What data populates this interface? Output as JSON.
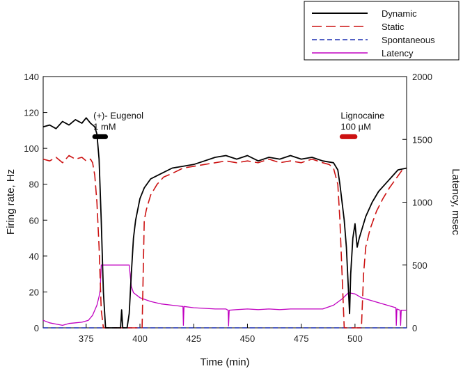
{
  "chart_data": {
    "type": "line",
    "title": "",
    "xlabel": "Time (min)",
    "ylabel": "Firing rate, Hz",
    "y2label": "Latency, msec",
    "xlim": [
      355,
      524
    ],
    "ylim": [
      0,
      140
    ],
    "y2lim": [
      0,
      2000
    ],
    "x_ticks": [
      375,
      400,
      425,
      450,
      475,
      500
    ],
    "y_ticks": [
      0,
      20,
      40,
      60,
      80,
      100,
      120,
      140
    ],
    "y2_ticks": [
      0,
      500,
      1000,
      1500,
      2000
    ],
    "grid": false,
    "legend_position": "top-right, outside plot",
    "legend": [
      "Dynamic",
      "Static",
      "Spontaneous",
      "Latency"
    ],
    "series": [
      {
        "name": "Dynamic",
        "axis": "left",
        "color": "#000000",
        "style": "solid",
        "points": [
          [
            355,
            112
          ],
          [
            358,
            113
          ],
          [
            361,
            111
          ],
          [
            364,
            115
          ],
          [
            367,
            113
          ],
          [
            370,
            116
          ],
          [
            373,
            114
          ],
          [
            375,
            117
          ],
          [
            377,
            114
          ],
          [
            379,
            112
          ],
          [
            380,
            108
          ],
          [
            381,
            94
          ],
          [
            382,
            60
          ],
          [
            383,
            20
          ],
          [
            384,
            0
          ],
          [
            391,
            0
          ],
          [
            391.5,
            10
          ],
          [
            392,
            0
          ],
          [
            394,
            0
          ],
          [
            395,
            8
          ],
          [
            396,
            30
          ],
          [
            397,
            50
          ],
          [
            398,
            60
          ],
          [
            399,
            66
          ],
          [
            400,
            72
          ],
          [
            402,
            78
          ],
          [
            405,
            83
          ],
          [
            410,
            86
          ],
          [
            415,
            89
          ],
          [
            420,
            90
          ],
          [
            425,
            91
          ],
          [
            430,
            93
          ],
          [
            435,
            95
          ],
          [
            440,
            96
          ],
          [
            445,
            94
          ],
          [
            450,
            96
          ],
          [
            455,
            93
          ],
          [
            460,
            95
          ],
          [
            465,
            94
          ],
          [
            470,
            96
          ],
          [
            475,
            94
          ],
          [
            480,
            95
          ],
          [
            485,
            93
          ],
          [
            490,
            92
          ],
          [
            492,
            88
          ],
          [
            493,
            80
          ],
          [
            494,
            70
          ],
          [
            495,
            60
          ],
          [
            496,
            45
          ],
          [
            497,
            20
          ],
          [
            497.5,
            8
          ],
          [
            498,
            30
          ],
          [
            499,
            50
          ],
          [
            500,
            58
          ],
          [
            501,
            45
          ],
          [
            502,
            50
          ],
          [
            505,
            62
          ],
          [
            508,
            70
          ],
          [
            511,
            76
          ],
          [
            514,
            80
          ],
          [
            517,
            84
          ],
          [
            520,
            88
          ],
          [
            524,
            89
          ]
        ]
      },
      {
        "name": "Static",
        "axis": "left",
        "color": "#cc1111",
        "style": "dashed",
        "points": [
          [
            355,
            94
          ],
          [
            358,
            93
          ],
          [
            361,
            95
          ],
          [
            364,
            92
          ],
          [
            367,
            96
          ],
          [
            370,
            94
          ],
          [
            373,
            95
          ],
          [
            375,
            93
          ],
          [
            377,
            94
          ],
          [
            378,
            92
          ],
          [
            379,
            85
          ],
          [
            380,
            70
          ],
          [
            381,
            45
          ],
          [
            382,
            10
          ],
          [
            383,
            0
          ],
          [
            401,
            0
          ],
          [
            402,
            60
          ],
          [
            403,
            66
          ],
          [
            405,
            74
          ],
          [
            408,
            80
          ],
          [
            411,
            84
          ],
          [
            415,
            86
          ],
          [
            420,
            89
          ],
          [
            425,
            90
          ],
          [
            430,
            91
          ],
          [
            435,
            92
          ],
          [
            440,
            93
          ],
          [
            445,
            92
          ],
          [
            450,
            93
          ],
          [
            455,
            92
          ],
          [
            460,
            94
          ],
          [
            465,
            92
          ],
          [
            470,
            93
          ],
          [
            475,
            92
          ],
          [
            480,
            94
          ],
          [
            485,
            92
          ],
          [
            488,
            91
          ],
          [
            490,
            89
          ],
          [
            492,
            80
          ],
          [
            493,
            60
          ],
          [
            494,
            30
          ],
          [
            495,
            0
          ],
          [
            503,
            0
          ],
          [
            504,
            30
          ],
          [
            505,
            45
          ],
          [
            507,
            55
          ],
          [
            510,
            65
          ],
          [
            513,
            72
          ],
          [
            516,
            78
          ],
          [
            519,
            83
          ],
          [
            522,
            88
          ],
          [
            524,
            89
          ]
        ]
      },
      {
        "name": "Spontaneous",
        "axis": "left",
        "color": "#1a2db0",
        "style": "dashed",
        "points": [
          [
            355,
            0
          ],
          [
            524,
            0
          ]
        ]
      },
      {
        "name": "Latency",
        "axis": "right",
        "color": "#c000c0",
        "style": "solid",
        "points": [
          [
            355,
            60
          ],
          [
            358,
            40
          ],
          [
            361,
            30
          ],
          [
            364,
            20
          ],
          [
            367,
            35
          ],
          [
            370,
            40
          ],
          [
            373,
            45
          ],
          [
            376,
            60
          ],
          [
            378,
            100
          ],
          [
            380,
            180
          ],
          [
            381,
            250
          ],
          [
            381.5,
            300
          ],
          [
            382,
            500
          ],
          [
            395,
            500
          ],
          [
            396,
            330
          ],
          [
            397,
            280
          ],
          [
            400,
            240
          ],
          [
            405,
            210
          ],
          [
            410,
            190
          ],
          [
            415,
            180
          ],
          [
            420,
            170
          ],
          [
            420.2,
            20
          ],
          [
            420.5,
            170
          ],
          [
            425,
            160
          ],
          [
            430,
            155
          ],
          [
            435,
            150
          ],
          [
            440,
            150
          ],
          [
            441,
            140
          ],
          [
            441.2,
            15
          ],
          [
            441.5,
            140
          ],
          [
            445,
            145
          ],
          [
            450,
            150
          ],
          [
            455,
            145
          ],
          [
            460,
            150
          ],
          [
            465,
            145
          ],
          [
            470,
            150
          ],
          [
            475,
            150
          ],
          [
            480,
            150
          ],
          [
            485,
            150
          ],
          [
            490,
            180
          ],
          [
            494,
            230
          ],
          [
            497,
            280
          ],
          [
            500,
            270
          ],
          [
            503,
            240
          ],
          [
            507,
            220
          ],
          [
            511,
            200
          ],
          [
            515,
            180
          ],
          [
            519,
            160
          ],
          [
            519.2,
            20
          ],
          [
            519.5,
            150
          ],
          [
            521,
            140
          ],
          [
            521.2,
            20
          ],
          [
            521.5,
            140
          ],
          [
            524,
            140
          ]
        ]
      }
    ],
    "annotations": [
      {
        "label": "(+)- Eugenol",
        "sublabel": "1 mM",
        "x_start": 379,
        "x_end": 384,
        "y": 122,
        "color": "#000000"
      },
      {
        "label": "Lignocaine",
        "sublabel": "100 µM",
        "x_start": 494,
        "x_end": 500,
        "y": 122,
        "color": "#cc1111"
      }
    ]
  }
}
